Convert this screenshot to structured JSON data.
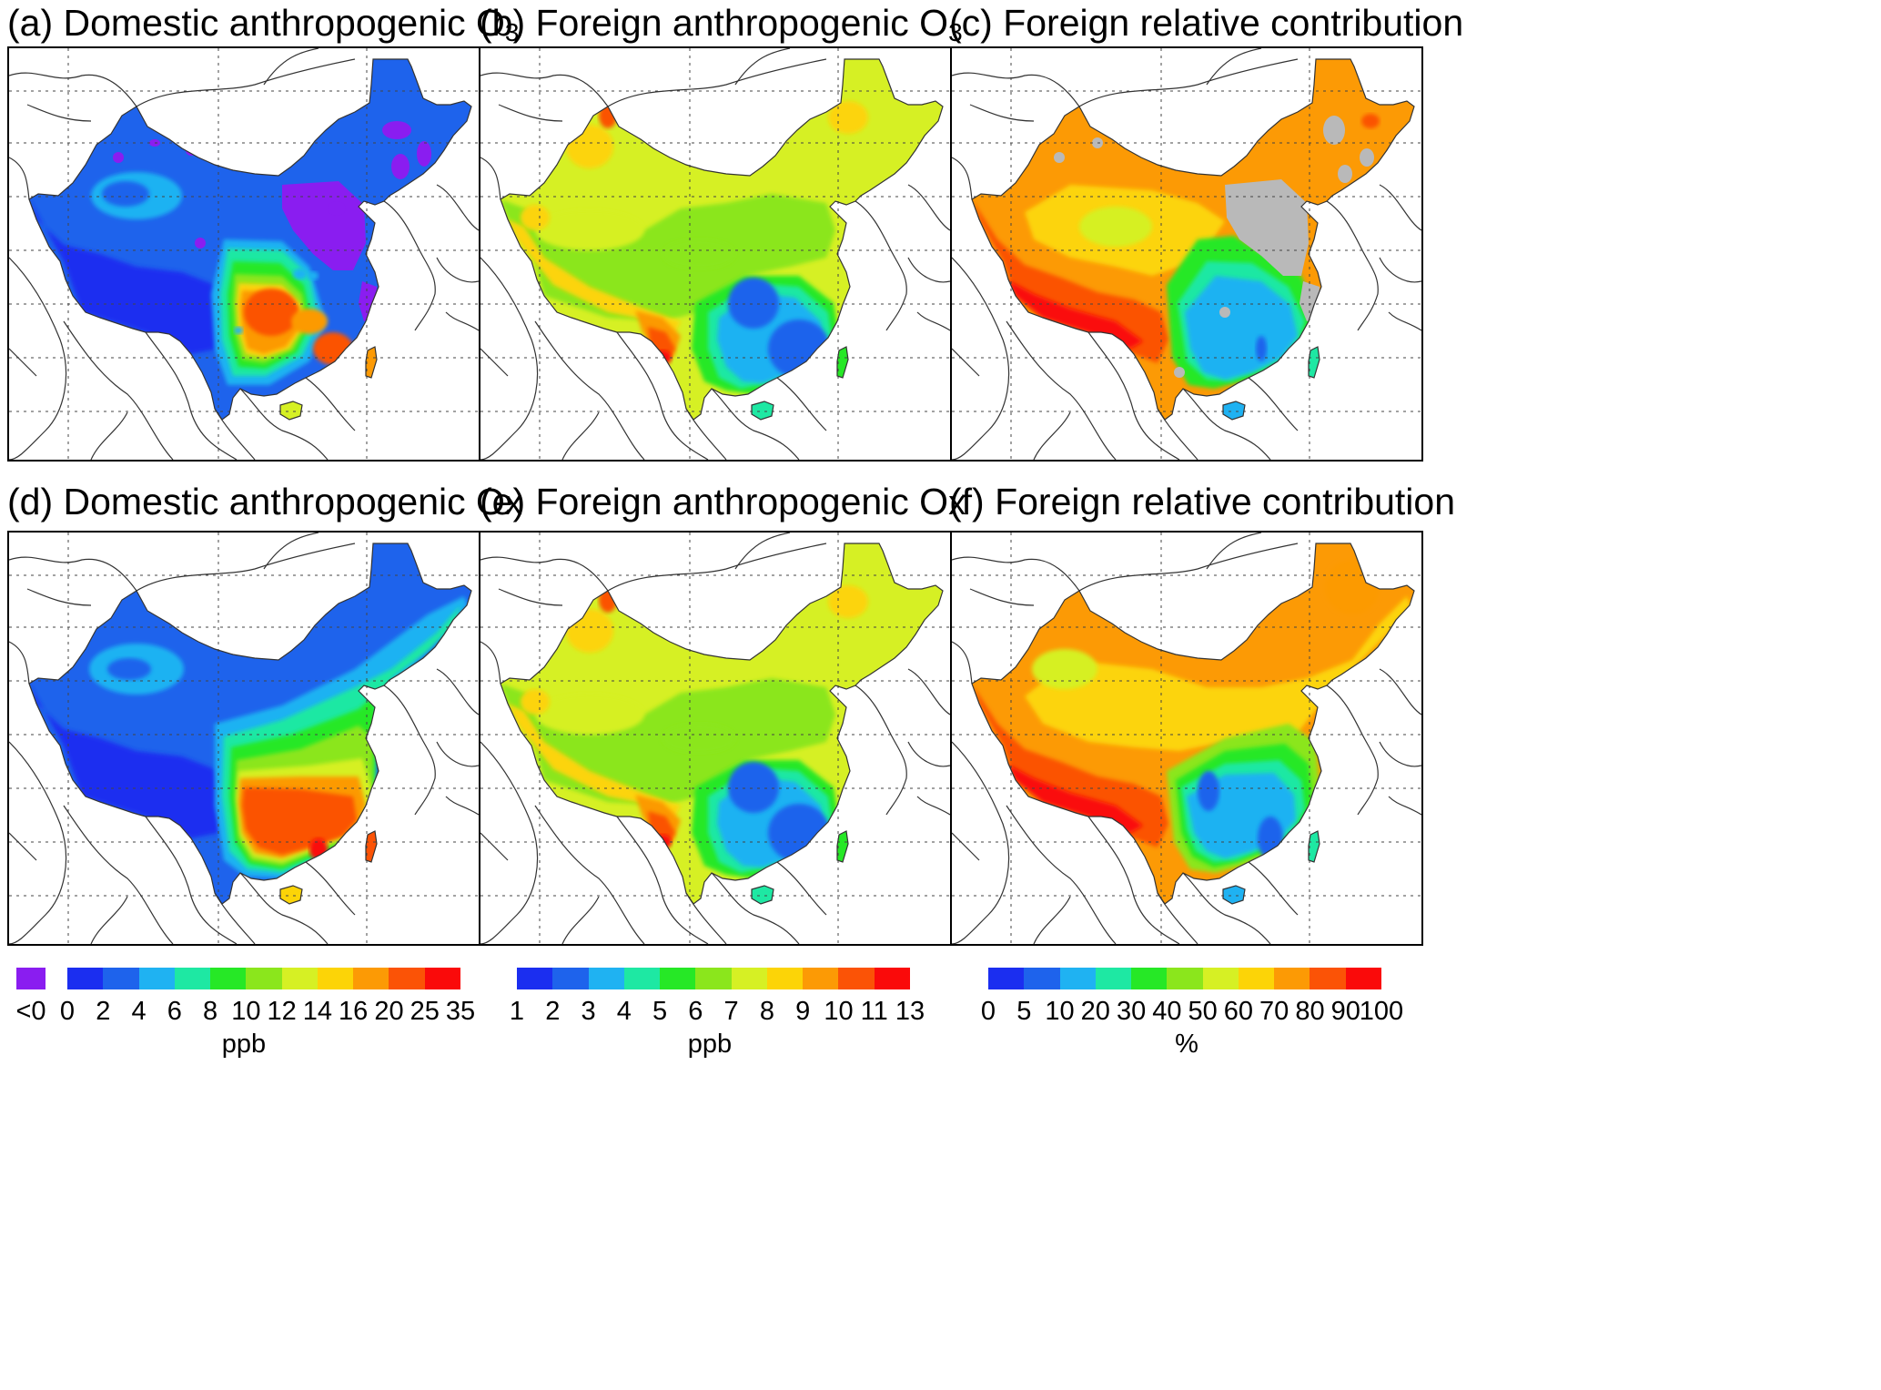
{
  "panels": [
    {
      "key": "a",
      "label": "(a) Domestic anthropogenic O",
      "sub": "3",
      "scale": "s1",
      "var": "domO3"
    },
    {
      "key": "b",
      "label": "(b) Foreign anthropogenic O",
      "sub": "3",
      "scale": "s2",
      "var": "forO3"
    },
    {
      "key": "c",
      "label": "(c) Foreign relative contribution",
      "sub": "",
      "scale": "s3",
      "var": "relO3"
    },
    {
      "key": "d",
      "label": "(d) Domestic anthropogenic O",
      "sub": "x",
      "scale": "s1",
      "var": "domOx"
    },
    {
      "key": "e",
      "label": "(e) Foreign anthropogenic O",
      "sub": "x",
      "scale": "s2",
      "var": "forOx"
    },
    {
      "key": "f",
      "label": "(f) Foreign relative contribution",
      "sub": "",
      "scale": "s3",
      "var": "relOx"
    }
  ],
  "colorbars": [
    {
      "id": "s1",
      "unit": "ppb",
      "negative_label": "<0",
      "negative_color": "#8a1df0",
      "ticks": [
        "0",
        "2",
        "4",
        "6",
        "8",
        "10",
        "12",
        "14",
        "16",
        "20",
        "25",
        "35"
      ],
      "colors": [
        "#1b2ef0",
        "#1e63ec",
        "#1fb2f2",
        "#1ee8a3",
        "#26e826",
        "#8be61c",
        "#d6f024",
        "#fcd407",
        "#fc9a05",
        "#fb5306",
        "#fa0a0a"
      ]
    },
    {
      "id": "s2",
      "unit": "ppb",
      "ticks": [
        "1",
        "2",
        "3",
        "4",
        "5",
        "6",
        "7",
        "8",
        "9",
        "10",
        "11",
        "13"
      ],
      "colors": [
        "#1b2ef0",
        "#1e63ec",
        "#1fb2f2",
        "#1ee8a3",
        "#26e826",
        "#8be61c",
        "#d6f024",
        "#fcd407",
        "#fc9a05",
        "#fb5306",
        "#fa0a0a"
      ]
    },
    {
      "id": "s3",
      "unit": "%",
      "ticks": [
        "0",
        "5",
        "10",
        "20",
        "30",
        "40",
        "50",
        "60",
        "70",
        "80",
        "90",
        "100"
      ],
      "colors": [
        "#1b2ef0",
        "#1e63ec",
        "#1fb2f2",
        "#1ee8a3",
        "#26e826",
        "#8be61c",
        "#d6f024",
        "#fcd407",
        "#fc9a05",
        "#fb5306",
        "#fa0a0a"
      ]
    }
  ],
  "colors": {
    "missing": "#b9b9b9",
    "coast": "#333333",
    "grid": "#444444"
  }
}
